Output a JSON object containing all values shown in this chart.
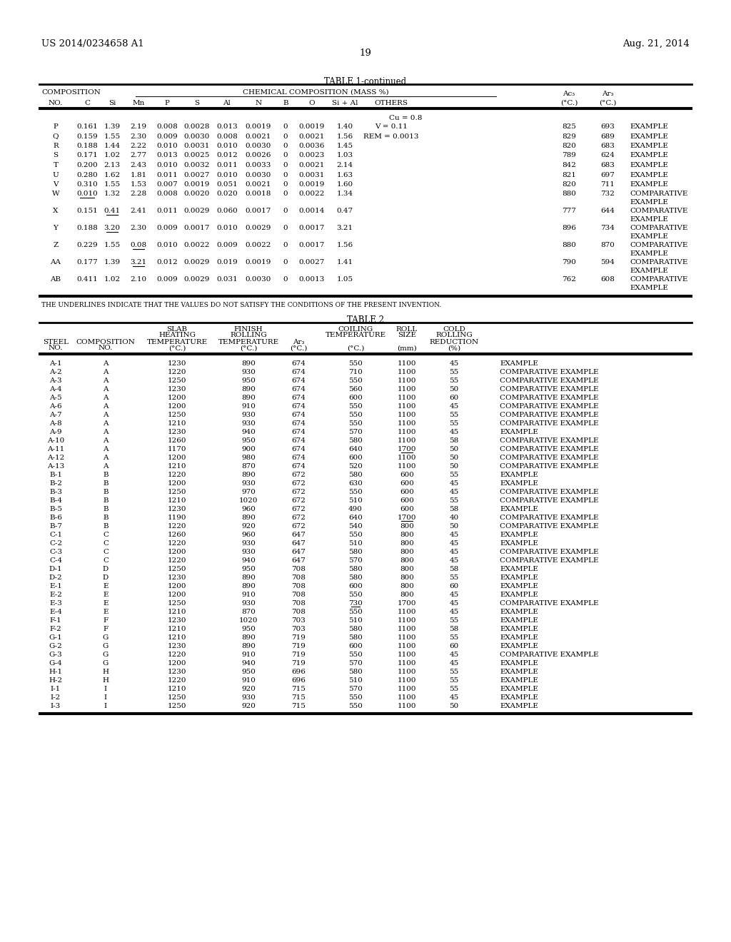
{
  "page_left": "US 2014/0234658 A1",
  "page_right": "Aug. 21, 2014",
  "page_number": "19",
  "table1_title": "TABLE 1-continued",
  "table1_note": "THE UNDERLINES INDICATE THAT THE VALUES DO NOT SATISFY THE CONDITIONS OF THE PRESENT INVENTION.",
  "table1_rows": [
    [
      "P",
      "0.161",
      "1.39",
      "2.19",
      "0.008",
      "0.0028",
      "0.013",
      "0.0019",
      "0",
      "0.0019",
      "1.40",
      "V = 0.11",
      "825",
      "693",
      "EXAMPLE"
    ],
    [
      "Q",
      "0.159",
      "1.55",
      "2.30",
      "0.009",
      "0.0030",
      "0.008",
      "0.0021",
      "0",
      "0.0021",
      "1.56",
      "REM = 0.0013",
      "829",
      "689",
      "EXAMPLE"
    ],
    [
      "R",
      "0.188",
      "1.44",
      "2.22",
      "0.010",
      "0.0031",
      "0.010",
      "0.0030",
      "0",
      "0.0036",
      "1.45",
      "",
      "820",
      "683",
      "EXAMPLE"
    ],
    [
      "S",
      "0.171",
      "1.02",
      "2.77",
      "0.013",
      "0.0025",
      "0.012",
      "0.0026",
      "0",
      "0.0023",
      "1.03",
      "",
      "789",
      "624",
      "EXAMPLE"
    ],
    [
      "T",
      "0.200",
      "2.13",
      "2.43",
      "0.010",
      "0.0032",
      "0.011",
      "0.0033",
      "0",
      "0.0021",
      "2.14",
      "",
      "842",
      "683",
      "EXAMPLE"
    ],
    [
      "U",
      "0.280",
      "1.62",
      "1.81",
      "0.011",
      "0.0027",
      "0.010",
      "0.0030",
      "0",
      "0.0031",
      "1.63",
      "",
      "821",
      "697",
      "EXAMPLE"
    ],
    [
      "V",
      "0.310",
      "1.55",
      "1.53",
      "0.007",
      "0.0019",
      "0.051",
      "0.0021",
      "0",
      "0.0019",
      "1.60",
      "",
      "820",
      "711",
      "EXAMPLE"
    ],
    [
      "W",
      "0.010",
      "1.32",
      "2.28",
      "0.008",
      "0.0020",
      "0.020",
      "0.0018",
      "0",
      "0.0022",
      "1.34",
      "",
      "880",
      "732",
      "COMPARATIVE EXAMPLE"
    ],
    [
      "X",
      "0.151",
      "0.41",
      "2.41",
      "0.011",
      "0.0029",
      "0.060",
      "0.0017",
      "0",
      "0.0014",
      "0.47",
      "",
      "777",
      "644",
      "COMPARATIVE EXAMPLE"
    ],
    [
      "Y",
      "0.188",
      "3.20",
      "2.30",
      "0.009",
      "0.0017",
      "0.010",
      "0.0029",
      "0",
      "0.0017",
      "3.21",
      "",
      "896",
      "734",
      "COMPARATIVE EXAMPLE"
    ],
    [
      "Z",
      "0.229",
      "1.55",
      "0.08",
      "0.010",
      "0.0022",
      "0.009",
      "0.0022",
      "0",
      "0.0017",
      "1.56",
      "",
      "880",
      "870",
      "COMPARATIVE EXAMPLE"
    ],
    [
      "AA",
      "0.177",
      "1.39",
      "3.21",
      "0.012",
      "0.0029",
      "0.019",
      "0.0019",
      "0",
      "0.0027",
      "1.41",
      "",
      "790",
      "594",
      "COMPARATIVE EXAMPLE"
    ],
    [
      "AB",
      "0.411",
      "1.02",
      "2.10",
      "0.009",
      "0.0029",
      "0.031",
      "0.0030",
      "0",
      "0.0013",
      "1.05",
      "",
      "762",
      "608",
      "COMPARATIVE EXAMPLE"
    ]
  ],
  "table1_underlines": {
    "W": "C",
    "X": "Si",
    "Y": "Si",
    "Z": "Mn",
    "AA": "Mn"
  },
  "table2_title": "TABLE 2",
  "table2_rows": [
    [
      "A-1",
      "A",
      "1230",
      "890",
      "674",
      "550",
      "1100",
      "45",
      "EXAMPLE"
    ],
    [
      "A-2",
      "A",
      "1220",
      "930",
      "674",
      "710",
      "1100",
      "55",
      "COMPARATIVE EXAMPLE"
    ],
    [
      "A-3",
      "A",
      "1250",
      "950",
      "674",
      "550",
      "1100",
      "55",
      "COMPARATIVE EXAMPLE"
    ],
    [
      "A-4",
      "A",
      "1230",
      "890",
      "674",
      "560",
      "1100",
      "50",
      "COMPARATIVE EXAMPLE"
    ],
    [
      "A-5",
      "A",
      "1200",
      "890",
      "674",
      "600",
      "1100",
      "60",
      "COMPARATIVE EXAMPLE"
    ],
    [
      "A-6",
      "A",
      "1200",
      "910",
      "674",
      "550",
      "1100",
      "45",
      "COMPARATIVE EXAMPLE"
    ],
    [
      "A-7",
      "A",
      "1250",
      "930",
      "674",
      "550",
      "1100",
      "55",
      "COMPARATIVE EXAMPLE"
    ],
    [
      "A-8",
      "A",
      "1210",
      "930",
      "674",
      "550",
      "1100",
      "55",
      "COMPARATIVE EXAMPLE"
    ],
    [
      "A-9",
      "A",
      "1230",
      "940",
      "674",
      "570",
      "1100",
      "45",
      "EXAMPLE"
    ],
    [
      "A-10",
      "A",
      "1260",
      "950",
      "674",
      "580",
      "1100",
      "58",
      "COMPARATIVE EXAMPLE"
    ],
    [
      "A-11",
      "A",
      "1170",
      "900",
      "674",
      "640",
      "1700",
      "50",
      "COMPARATIVE EXAMPLE"
    ],
    [
      "A-12",
      "A",
      "1200",
      "980",
      "674",
      "600",
      "1100",
      "50",
      "COMPARATIVE EXAMPLE"
    ],
    [
      "A-13",
      "A",
      "1210",
      "870",
      "674",
      "520",
      "1100",
      "50",
      "COMPARATIVE EXAMPLE"
    ],
    [
      "B-1",
      "B",
      "1220",
      "890",
      "672",
      "580",
      "600",
      "55",
      "EXAMPLE"
    ],
    [
      "B-2",
      "B",
      "1200",
      "930",
      "672",
      "630",
      "600",
      "45",
      "EXAMPLE"
    ],
    [
      "B-3",
      "B",
      "1250",
      "970",
      "672",
      "550",
      "600",
      "45",
      "COMPARATIVE EXAMPLE"
    ],
    [
      "B-4",
      "B",
      "1210",
      "1020",
      "672",
      "510",
      "600",
      "55",
      "COMPARATIVE EXAMPLE"
    ],
    [
      "B-5",
      "B",
      "1230",
      "960",
      "672",
      "490",
      "600",
      "58",
      "EXAMPLE"
    ],
    [
      "B-6",
      "B",
      "1190",
      "890",
      "672",
      "640",
      "1700",
      "40",
      "COMPARATIVE EXAMPLE"
    ],
    [
      "B-7",
      "B",
      "1220",
      "920",
      "672",
      "540",
      "800",
      "50",
      "COMPARATIVE EXAMPLE"
    ],
    [
      "C-1",
      "C",
      "1260",
      "960",
      "647",
      "550",
      "800",
      "45",
      "EXAMPLE"
    ],
    [
      "C-2",
      "C",
      "1220",
      "930",
      "647",
      "510",
      "800",
      "45",
      "EXAMPLE"
    ],
    [
      "C-3",
      "C",
      "1200",
      "930",
      "647",
      "580",
      "800",
      "45",
      "COMPARATIVE EXAMPLE"
    ],
    [
      "C-4",
      "C",
      "1220",
      "940",
      "647",
      "570",
      "800",
      "45",
      "COMPARATIVE EXAMPLE"
    ],
    [
      "D-1",
      "D",
      "1250",
      "950",
      "708",
      "580",
      "800",
      "58",
      "EXAMPLE"
    ],
    [
      "D-2",
      "D",
      "1230",
      "890",
      "708",
      "580",
      "800",
      "55",
      "EXAMPLE"
    ],
    [
      "E-1",
      "E",
      "1200",
      "890",
      "708",
      "600",
      "800",
      "60",
      "EXAMPLE"
    ],
    [
      "E-2",
      "E",
      "1200",
      "910",
      "708",
      "550",
      "800",
      "45",
      "EXAMPLE"
    ],
    [
      "E-3",
      "E",
      "1250",
      "930",
      "708",
      "730",
      "1700",
      "45",
      "COMPARATIVE EXAMPLE"
    ],
    [
      "E-4",
      "E",
      "1210",
      "870",
      "708",
      "550",
      "1100",
      "45",
      "EXAMPLE"
    ],
    [
      "F-1",
      "F",
      "1230",
      "1020",
      "703",
      "510",
      "1100",
      "55",
      "EXAMPLE"
    ],
    [
      "F-2",
      "F",
      "1210",
      "950",
      "703",
      "580",
      "1100",
      "58",
      "EXAMPLE"
    ],
    [
      "G-1",
      "G",
      "1210",
      "890",
      "719",
      "580",
      "1100",
      "55",
      "EXAMPLE"
    ],
    [
      "G-2",
      "G",
      "1230",
      "890",
      "719",
      "600",
      "1100",
      "60",
      "EXAMPLE"
    ],
    [
      "G-3",
      "G",
      "1220",
      "910",
      "719",
      "550",
      "1100",
      "45",
      "COMPARATIVE EXAMPLE"
    ],
    [
      "G-4",
      "G",
      "1200",
      "940",
      "719",
      "570",
      "1100",
      "45",
      "EXAMPLE"
    ],
    [
      "H-1",
      "H",
      "1230",
      "950",
      "696",
      "580",
      "1100",
      "55",
      "EXAMPLE"
    ],
    [
      "H-2",
      "H",
      "1220",
      "910",
      "696",
      "510",
      "1100",
      "55",
      "EXAMPLE"
    ],
    [
      "I-1",
      "I",
      "1210",
      "920",
      "715",
      "570",
      "1100",
      "55",
      "EXAMPLE"
    ],
    [
      "I-2",
      "I",
      "1250",
      "930",
      "715",
      "550",
      "1100",
      "45",
      "EXAMPLE"
    ],
    [
      "I-3",
      "I",
      "1250",
      "920",
      "715",
      "550",
      "1100",
      "50",
      "EXAMPLE"
    ]
  ],
  "table2_underlines": {
    "A-11": "roll",
    "B-6": "roll",
    "E-3": "coil"
  }
}
